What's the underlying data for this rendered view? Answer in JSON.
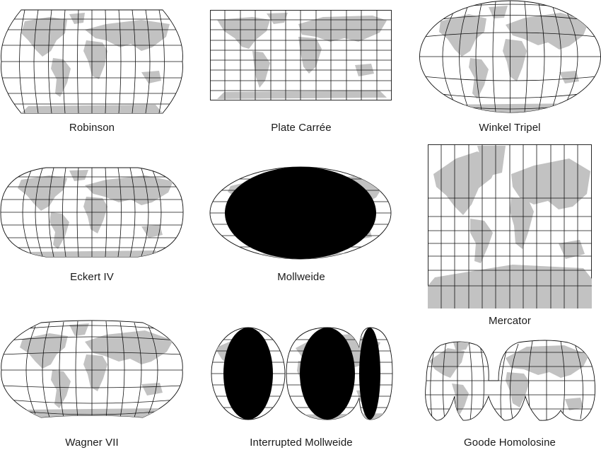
{
  "colors": {
    "land": "#c2c2c2",
    "grid": "#111111",
    "background": "#ffffff"
  },
  "projections": {
    "robinson": "Robinson",
    "plate_carree": "Plate Carrée",
    "winkel_tripel": "Winkel Tripel",
    "eckert_iv": "Eckert IV",
    "mollweide": "Mollweide",
    "mercator": "Mercator",
    "wagner_vii": "Wagner VII",
    "interrupted_mollweide": "Interrupted Mollweide",
    "goode_homolosine": "Goode Homolosine"
  }
}
